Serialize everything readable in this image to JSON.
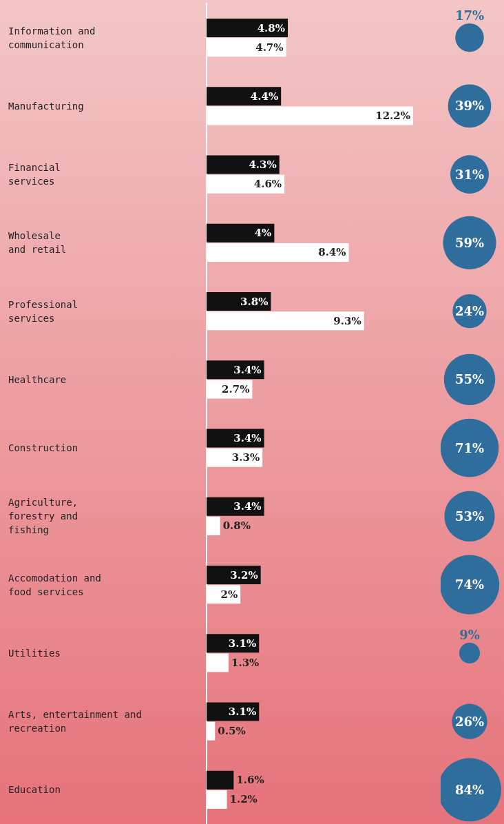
{
  "chart_data": [
    {
      "type": "bar",
      "orientation": "horizontal",
      "categories": [
        "Information and\ncommunication",
        "Manufacturing",
        "Financial\nservices",
        "Wholesale\nand retail",
        "Professional\nservices",
        "Healthcare",
        "Construction",
        "Agriculture,\nforestry and\nfishing",
        "Accomodation and\nfood services",
        "Utilities",
        "Arts, entertainment and\nrecreation",
        "Education"
      ],
      "series": [
        {
          "type": "bar",
          "color": "#111111",
          "values": [
            4.8,
            4.4,
            4.3,
            4,
            3.8,
            3.4,
            3.4,
            3.4,
            3.2,
            3.1,
            3.1,
            1.6
          ],
          "value_labels": [
            "4.8%",
            "4.4%",
            "4.3%",
            "4%",
            "3.8%",
            "3.4%",
            "3.4%",
            "3.4%",
            "3.2%",
            "3.1%",
            "3.1%",
            "1.6%"
          ]
        },
        {
          "type": "bar",
          "color": "#ffffff",
          "values": [
            4.7,
            12.2,
            4.6,
            8.4,
            9.3,
            2.7,
            3.3,
            0.8,
            2,
            1.3,
            0.5,
            1.2
          ],
          "value_labels": [
            "4.7%",
            "12.2%",
            "4.6%",
            "8.4%",
            "9.3%",
            "2.7%",
            "3.3%",
            "0.8%",
            "2%",
            "1.3%",
            "0.5%",
            "1.2%"
          ]
        }
      ],
      "grid": false
    },
    {
      "type": "other",
      "categories": [
        null,
        null,
        null,
        null,
        null,
        null,
        null,
        null,
        null,
        null,
        null,
        null
      ],
      "color": "#2f6e9c",
      "values": [
        17,
        39,
        31,
        59,
        24,
        55,
        71,
        53,
        74,
        9,
        26,
        84
      ],
      "value_labels": [
        "17%",
        "39%",
        "31%",
        "59%",
        "24%",
        "55%",
        "71%",
        "53%",
        "74%",
        "9%",
        "26%",
        "84%"
      ]
    }
  ]
}
